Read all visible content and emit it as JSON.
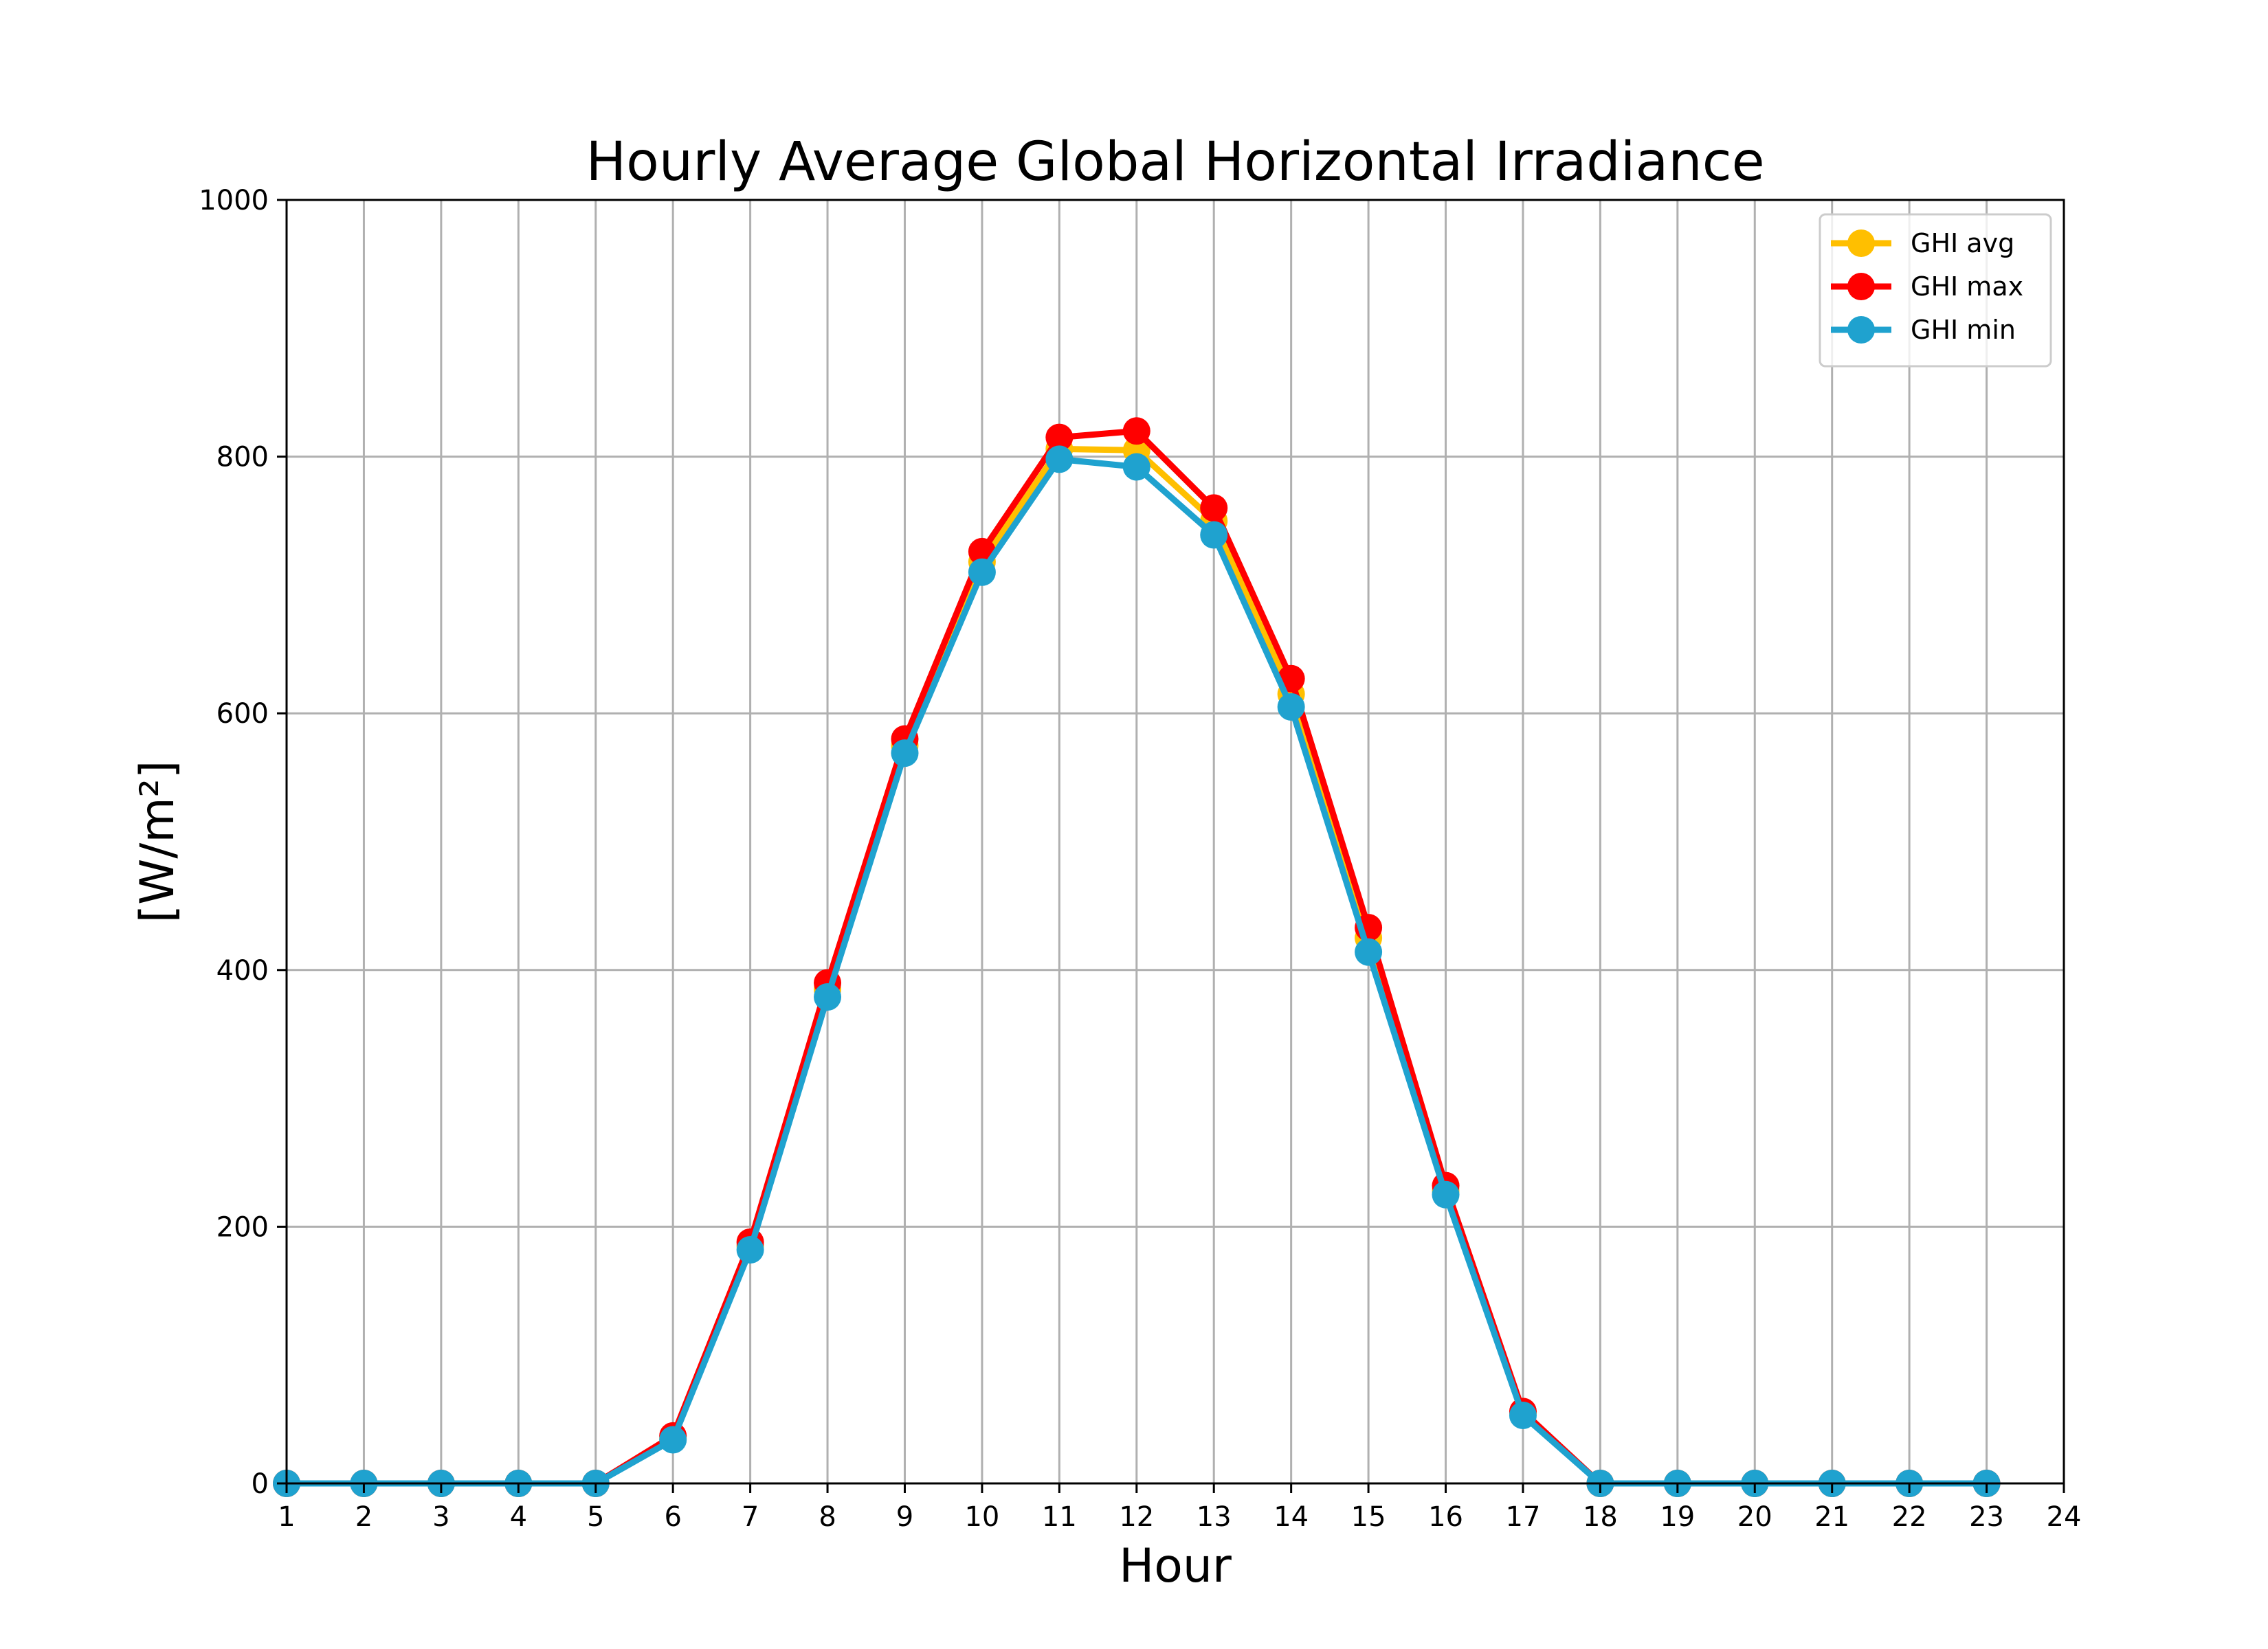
{
  "chart_data": {
    "type": "line",
    "title": "Hourly Average Global Horizontal Irradiance",
    "xlabel": "Hour",
    "ylabel": "[W/m²]",
    "xlim": [
      1,
      24
    ],
    "ylim": [
      0,
      1000
    ],
    "xticks": [
      1,
      2,
      3,
      4,
      5,
      6,
      7,
      8,
      9,
      10,
      11,
      12,
      13,
      14,
      15,
      16,
      17,
      18,
      19,
      20,
      21,
      22,
      23,
      24
    ],
    "yticks": [
      0,
      200,
      400,
      600,
      800,
      1000
    ],
    "grid": true,
    "legend_position": "top-right",
    "x": [
      1,
      2,
      3,
      4,
      5,
      6,
      7,
      8,
      9,
      10,
      11,
      12,
      13,
      14,
      15,
      16,
      17,
      18,
      19,
      20,
      21,
      22,
      23
    ],
    "series": [
      {
        "name": "GHI avg",
        "color": "#FFBF00",
        "marker": "circle",
        "values": [
          0,
          0,
          0,
          0,
          0,
          35,
          185,
          385,
          575,
          718,
          806,
          805,
          750,
          615,
          425,
          228,
          55,
          0,
          0,
          0,
          0,
          0,
          0
        ]
      },
      {
        "name": "GHI max",
        "color": "#FF0000",
        "marker": "circle",
        "values": [
          0,
          0,
          0,
          0,
          0,
          37,
          188,
          390,
          580,
          726,
          815,
          820,
          760,
          627,
          433,
          232,
          56,
          0,
          0,
          0,
          0,
          0,
          0
        ]
      },
      {
        "name": "GHI min",
        "color": "#1FA2CF",
        "marker": "circle",
        "values": [
          0,
          0,
          0,
          0,
          0,
          34,
          182,
          379,
          569,
          710,
          798,
          792,
          739,
          605,
          414,
          225,
          53,
          0,
          0,
          0,
          0,
          0,
          0
        ]
      }
    ]
  }
}
